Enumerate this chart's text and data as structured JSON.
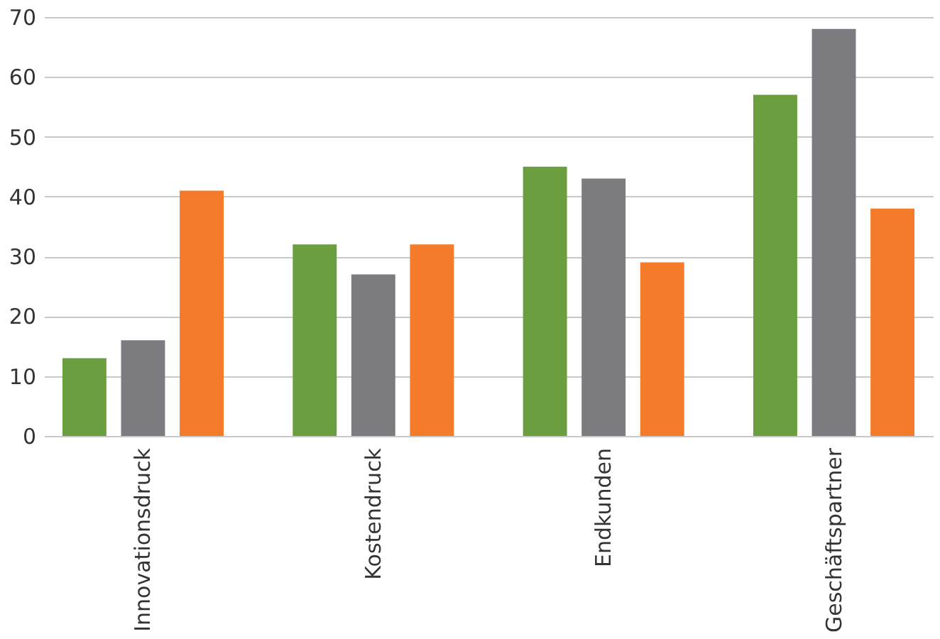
{
  "chart_data": {
    "type": "bar",
    "categories": [
      "Innovationsdruck",
      "Kostendruck",
      "Endkunden",
      "Geschäftspartner"
    ],
    "series": [
      {
        "color": "#6a9e3f",
        "values": [
          13,
          32,
          45,
          57
        ]
      },
      {
        "color": "#7b7b80",
        "values": [
          16,
          27,
          43,
          68
        ]
      },
      {
        "color": "#f47b2a",
        "values": [
          41,
          32,
          29,
          38
        ]
      }
    ],
    "ylim": [
      0,
      70
    ],
    "yticks": [
      0,
      10,
      20,
      30,
      40,
      50,
      60,
      70
    ],
    "grid": "y",
    "legend": false
  }
}
